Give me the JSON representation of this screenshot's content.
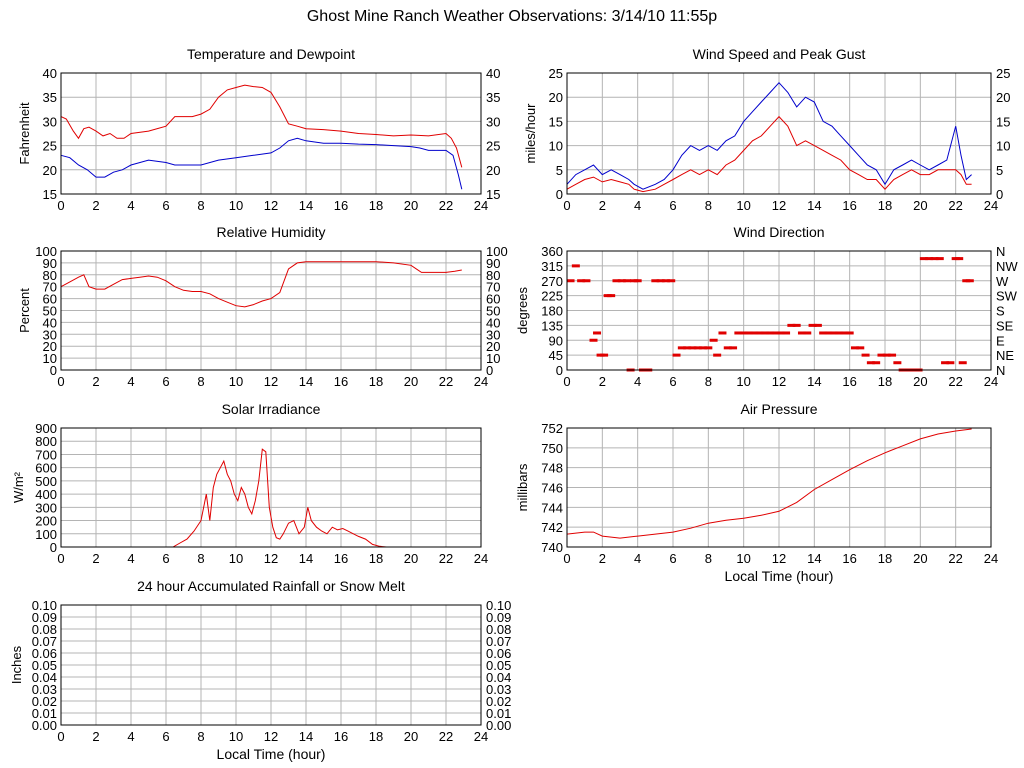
{
  "page": {
    "title": "Ghost Mine Ranch Weather Observations: 3/14/10 11:55p"
  },
  "colors": {
    "red": "#e00000",
    "blue": "#0000cc",
    "grid": "#b4b4b4",
    "frame": "#000000"
  },
  "chart_data": [
    {
      "id": "temp",
      "type": "line",
      "title": "Temperature and Dewpoint",
      "ylabel": "Fahrenheit",
      "xlabel": "",
      "xlim": [
        0,
        24
      ],
      "ylim": [
        15,
        40
      ],
      "xticks": [
        0,
        2,
        4,
        6,
        8,
        10,
        12,
        14,
        16,
        18,
        20,
        22,
        24
      ],
      "yticks": [
        15,
        20,
        25,
        30,
        35,
        40
      ],
      "right_ticks": [
        "15",
        "20",
        "25",
        "30",
        "35",
        "40"
      ],
      "grid": true,
      "series": [
        {
          "color": "#e00000",
          "x": [
            0,
            0.3,
            0.7,
            1.0,
            1.3,
            1.6,
            2.0,
            2.4,
            2.8,
            3.2,
            3.6,
            4.0,
            5.0,
            6.0,
            6.5,
            7.0,
            7.5,
            8.0,
            8.5,
            9.0,
            9.5,
            10.0,
            10.5,
            11.0,
            11.5,
            12.0,
            12.5,
            13.0,
            13.5,
            14.0,
            15.0,
            16.0,
            17.0,
            18.0,
            19.0,
            20.0,
            21.0,
            22.0,
            22.3,
            22.6,
            22.9
          ],
          "y": [
            31,
            30.5,
            28,
            26.5,
            28.5,
            28.8,
            28,
            27,
            27.5,
            26.5,
            26.5,
            27.5,
            28,
            29,
            31,
            31,
            31,
            31.5,
            32.5,
            35,
            36.5,
            37,
            37.5,
            37.2,
            37,
            36,
            33,
            29.5,
            29,
            28.5,
            28.3,
            28,
            27.5,
            27.3,
            27,
            27.2,
            27,
            27.5,
            26.5,
            24.5,
            20.5
          ]
        },
        {
          "color": "#0000cc",
          "x": [
            0,
            0.5,
            1.0,
            1.5,
            2.0,
            2.5,
            3.0,
            3.5,
            4.0,
            5.0,
            6.0,
            6.5,
            7.0,
            8.0,
            9.0,
            10.0,
            11.0,
            12.0,
            12.5,
            13.0,
            13.5,
            14.0,
            15.0,
            16.0,
            17.0,
            18.0,
            19.0,
            20.0,
            20.5,
            21.0,
            22.0,
            22.4,
            22.7,
            22.9
          ],
          "y": [
            23,
            22.5,
            21,
            20,
            18.5,
            18.5,
            19.5,
            20,
            21,
            22,
            21.5,
            21,
            21,
            21,
            22,
            22.5,
            23,
            23.5,
            24.5,
            26,
            26.5,
            26,
            25.5,
            25.5,
            25.3,
            25.2,
            25,
            24.8,
            24.5,
            24,
            24,
            23,
            19,
            16
          ]
        }
      ]
    },
    {
      "id": "wind",
      "type": "line",
      "title": "Wind Speed and Peak Gust",
      "ylabel": "miles/hour",
      "xlabel": "",
      "xlim": [
        0,
        24
      ],
      "ylim": [
        0,
        25
      ],
      "xticks": [
        0,
        2,
        4,
        6,
        8,
        10,
        12,
        14,
        16,
        18,
        20,
        22,
        24
      ],
      "yticks": [
        0,
        5,
        10,
        15,
        20,
        25
      ],
      "right_ticks": [
        "0",
        "5",
        "10",
        "15",
        "20",
        "25"
      ],
      "grid": true,
      "series": [
        {
          "color": "#0000cc",
          "x": [
            0,
            0.5,
            1.0,
            1.5,
            2.0,
            2.5,
            3.0,
            3.5,
            3.8,
            4.3,
            5.0,
            5.5,
            6.0,
            6.5,
            7.0,
            7.5,
            8.0,
            8.5,
            9.0,
            9.5,
            10.0,
            10.5,
            11.0,
            11.5,
            12.0,
            12.5,
            13.0,
            13.5,
            14.0,
            14.5,
            15.0,
            15.5,
            16.0,
            16.5,
            17.0,
            17.5,
            18.0,
            18.5,
            19.0,
            19.5,
            20.0,
            20.5,
            21.0,
            21.5,
            22.0,
            22.3,
            22.6,
            22.9
          ],
          "y": [
            2,
            4,
            5,
            6,
            4,
            5,
            4,
            3,
            2,
            1,
            2,
            3,
            5,
            8,
            10,
            9,
            10,
            9,
            11,
            12,
            15,
            17,
            19,
            21,
            23,
            21,
            18,
            20,
            19,
            15,
            14,
            12,
            10,
            8,
            6,
            5,
            2,
            5,
            6,
            7,
            6,
            5,
            6,
            7,
            14,
            8,
            3,
            4
          ]
        },
        {
          "color": "#e00000",
          "x": [
            0,
            0.5,
            1.0,
            1.5,
            2.0,
            2.5,
            3.0,
            3.5,
            3.8,
            4.3,
            5.0,
            5.5,
            6.0,
            6.5,
            7.0,
            7.5,
            8.0,
            8.5,
            9.0,
            9.5,
            10.0,
            10.5,
            11.0,
            11.5,
            12.0,
            12.5,
            13.0,
            13.5,
            14.0,
            14.5,
            15.0,
            15.5,
            16.0,
            16.5,
            17.0,
            17.5,
            18.0,
            18.5,
            19.0,
            19.5,
            20.0,
            20.5,
            21.0,
            21.5,
            22.0,
            22.3,
            22.6,
            22.9
          ],
          "y": [
            1,
            2,
            3,
            3.5,
            2.5,
            3,
            2.5,
            2,
            1,
            0.5,
            1,
            2,
            3,
            4,
            5,
            4,
            5,
            4,
            6,
            7,
            9,
            11,
            12,
            14,
            16,
            14,
            10,
            11,
            10,
            9,
            8,
            7,
            5,
            4,
            3,
            3,
            1,
            3,
            4,
            5,
            4,
            4,
            5,
            5,
            5,
            4,
            2,
            2
          ]
        }
      ]
    },
    {
      "id": "humidity",
      "type": "line",
      "title": "Relative Humidity",
      "ylabel": "Percent",
      "xlabel": "",
      "xlim": [
        0,
        24
      ],
      "ylim": [
        0,
        100
      ],
      "xticks": [
        0,
        2,
        4,
        6,
        8,
        10,
        12,
        14,
        16,
        18,
        20,
        22,
        24
      ],
      "yticks": [
        0,
        10,
        20,
        30,
        40,
        50,
        60,
        70,
        80,
        90,
        100
      ],
      "right_ticks": [
        "0",
        "10",
        "20",
        "30",
        "40",
        "50",
        "60",
        "70",
        "80",
        "90",
        "100"
      ],
      "grid": true,
      "series": [
        {
          "color": "#e00000",
          "x": [
            0,
            0.5,
            1.0,
            1.3,
            1.6,
            2.0,
            2.5,
            3.0,
            3.5,
            4.0,
            4.5,
            5.0,
            5.5,
            6.0,
            6.5,
            7.0,
            7.5,
            8.0,
            8.5,
            9.0,
            9.5,
            10.0,
            10.5,
            11.0,
            11.5,
            12.0,
            12.5,
            13.0,
            13.5,
            14.0,
            15.0,
            16.0,
            17.0,
            18.0,
            19.0,
            20.0,
            20.3,
            20.6,
            21.0,
            22.0,
            22.5,
            22.9
          ],
          "y": [
            70,
            74,
            78,
            80,
            70,
            68,
            68,
            72,
            76,
            77,
            78,
            79,
            78,
            75,
            70,
            67,
            66,
            66,
            64,
            60,
            57,
            54,
            53,
            55,
            58,
            60,
            65,
            85,
            90,
            91,
            91,
            91,
            91,
            91,
            90,
            88,
            85,
            82,
            82,
            82,
            83,
            84
          ]
        }
      ]
    },
    {
      "id": "winddir",
      "type": "scatter",
      "title": "Wind Direction",
      "ylabel": "degrees",
      "xlabel": "",
      "xlim": [
        0,
        24
      ],
      "ylim": [
        0,
        360
      ],
      "xticks": [
        0,
        2,
        4,
        6,
        8,
        10,
        12,
        14,
        16,
        18,
        20,
        22,
        24
      ],
      "yticks": [
        0,
        45,
        90,
        135,
        180,
        225,
        270,
        315,
        360
      ],
      "right_ticks": [
        "N",
        "NE",
        "E",
        "SE",
        "S",
        "SW",
        "W",
        "NW",
        "N"
      ],
      "grid": true,
      "series": [
        {
          "color": "#e00000",
          "x": [
            0.2,
            0.5,
            0.8,
            1.1,
            1.5,
            1.7,
            1.9,
            2.1,
            2.3,
            2.5,
            2.8,
            3.1,
            3.4,
            3.6,
            3.8,
            4.0,
            4.3,
            4.6,
            5.0,
            5.3,
            5.6,
            5.9,
            6.2,
            6.5,
            6.8,
            7.1,
            7.4,
            7.7,
            8.0,
            8.3,
            8.5,
            8.8,
            9.1,
            9.4,
            9.7,
            10.0,
            10.3,
            10.6,
            10.9,
            11.2,
            11.5,
            11.8,
            12.1,
            12.4,
            12.7,
            13.0,
            13.3,
            13.6,
            13.9,
            14.2,
            14.5,
            14.8,
            15.1,
            15.4,
            15.7,
            16.0,
            16.3,
            16.6,
            16.9,
            17.2,
            17.5,
            17.8,
            18.1,
            18.4,
            18.7,
            19.0,
            19.3,
            19.6,
            19.9,
            20.2,
            20.5,
            20.8,
            21.1,
            21.4,
            21.7,
            22.0,
            22.2,
            22.4,
            22.6,
            22.8
          ],
          "y": [
            270,
            315,
            270,
            270,
            90,
            112,
            45,
            45,
            225,
            225,
            270,
            270,
            270,
            0,
            270,
            270,
            0,
            0,
            270,
            270,
            270,
            270,
            45,
            67,
            67,
            67,
            67,
            67,
            67,
            90,
            45,
            112,
            67,
            67,
            112,
            112,
            112,
            112,
            112,
            112,
            112,
            112,
            112,
            112,
            135,
            135,
            112,
            112,
            135,
            135,
            112,
            112,
            112,
            112,
            112,
            112,
            67,
            67,
            45,
            22,
            22,
            45,
            45,
            45,
            22,
            0,
            0,
            0,
            0,
            337,
            337,
            337,
            337,
            22,
            22,
            337,
            337,
            22,
            270,
            270
          ]
        }
      ]
    },
    {
      "id": "solar",
      "type": "line",
      "title": "Solar Irradiance",
      "ylabel": "W/m²",
      "xlabel": "",
      "xlim": [
        0,
        24
      ],
      "ylim": [
        0,
        900
      ],
      "xticks": [
        0,
        2,
        4,
        6,
        8,
        10,
        12,
        14,
        16,
        18,
        20,
        22,
        24
      ],
      "yticks": [
        0,
        100,
        200,
        300,
        400,
        500,
        600,
        700,
        800,
        900
      ],
      "right_ticks": [],
      "grid": true,
      "series": [
        {
          "color": "#e00000",
          "x": [
            0,
            6.4,
            6.8,
            7.2,
            7.6,
            8.0,
            8.3,
            8.5,
            8.7,
            8.9,
            9.1,
            9.3,
            9.5,
            9.7,
            9.9,
            10.1,
            10.3,
            10.5,
            10.7,
            10.9,
            11.1,
            11.3,
            11.5,
            11.7,
            11.9,
            12.1,
            12.3,
            12.5,
            12.7,
            13.0,
            13.3,
            13.6,
            13.9,
            14.1,
            14.3,
            14.6,
            14.9,
            15.2,
            15.5,
            15.8,
            16.1,
            16.4,
            16.7,
            17.0,
            17.4,
            17.8,
            18.2,
            18.6,
            23
          ],
          "y": [
            0,
            0,
            30,
            60,
            120,
            200,
            400,
            200,
            450,
            550,
            600,
            650,
            550,
            500,
            400,
            350,
            450,
            400,
            300,
            250,
            350,
            500,
            740,
            720,
            300,
            150,
            70,
            60,
            100,
            180,
            200,
            100,
            150,
            300,
            200,
            150,
            120,
            100,
            150,
            130,
            140,
            120,
            100,
            80,
            60,
            20,
            5,
            0,
            0
          ]
        }
      ]
    },
    {
      "id": "pressure",
      "type": "line",
      "title": "Air Pressure",
      "ylabel": "millibars",
      "xlabel": "Local Time (hour)",
      "xlim": [
        0,
        24
      ],
      "ylim": [
        740,
        752
      ],
      "xticks": [
        0,
        2,
        4,
        6,
        8,
        10,
        12,
        14,
        16,
        18,
        20,
        22,
        24
      ],
      "yticks": [
        740,
        742,
        744,
        746,
        748,
        750,
        752
      ],
      "right_ticks": [],
      "grid": true,
      "series": [
        {
          "color": "#e00000",
          "x": [
            0,
            0.5,
            1.0,
            1.5,
            2.0,
            2.5,
            3.0,
            4.0,
            5.0,
            6.0,
            7.0,
            8.0,
            9.0,
            10.0,
            11.0,
            12.0,
            13.0,
            14.0,
            15.0,
            16.0,
            17.0,
            18.0,
            19.0,
            20.0,
            21.0,
            22.0,
            22.9
          ],
          "y": [
            741.3,
            741.4,
            741.5,
            741.5,
            741.1,
            741.0,
            740.9,
            741.1,
            741.3,
            741.5,
            741.9,
            742.4,
            742.7,
            742.9,
            743.2,
            743.6,
            744.5,
            745.8,
            746.8,
            747.8,
            748.7,
            749.5,
            750.2,
            750.9,
            751.4,
            751.7,
            751.9
          ]
        }
      ]
    },
    {
      "id": "rain",
      "type": "line",
      "title": "24 hour Accumulated Rainfall or Snow Melt",
      "ylabel": "Inches",
      "xlabel": "Local Time (hour)",
      "xlim": [
        0,
        24
      ],
      "ylim": [
        0,
        0.1
      ],
      "xticks": [
        0,
        2,
        4,
        6,
        8,
        10,
        12,
        14,
        16,
        18,
        20,
        22,
        24
      ],
      "yticks": [
        0.0,
        0.01,
        0.02,
        0.03,
        0.04,
        0.05,
        0.06,
        0.07,
        0.08,
        0.09,
        0.1
      ],
      "ytick_labels": [
        "0.00",
        "0.01",
        "0.02",
        "0.03",
        "0.04",
        "0.05",
        "0.06",
        "0.07",
        "0.08",
        "0.09",
        "0.10"
      ],
      "right_ticks": [
        "0.00",
        "0.01",
        "0.02",
        "0.03",
        "0.04",
        "0.05",
        "0.06",
        "0.07",
        "0.08",
        "0.09",
        "0.10"
      ],
      "grid": true,
      "series": [
        {
          "color": "#e00000",
          "x": [
            0,
            23
          ],
          "y": [
            0,
            0
          ]
        }
      ]
    }
  ]
}
